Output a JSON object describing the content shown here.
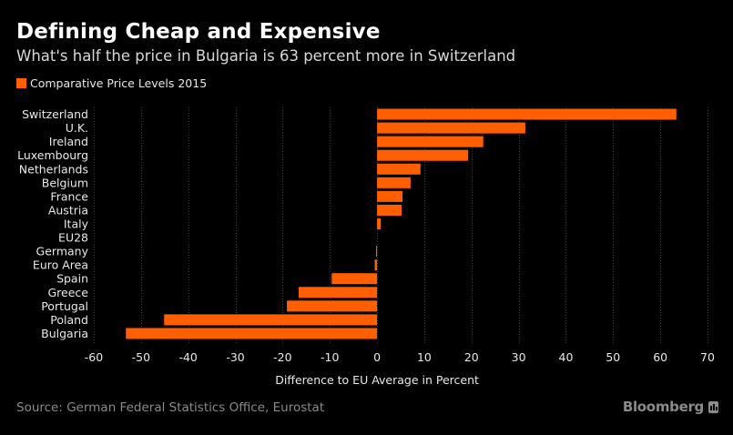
{
  "header": {
    "title": "Defining Cheap and Expensive",
    "subtitle": "What's half the price in Bulgaria is 63 percent more in Switzerland"
  },
  "footer": {
    "source": "Source: German Federal Statistics Office, Eurostat",
    "brand": "Bloomberg"
  },
  "colors": {
    "bar": "#ff5f00",
    "background": "#000000",
    "gridline": "#3a3a3a"
  },
  "chart_data": {
    "type": "bar",
    "orientation": "horizontal",
    "title": "Defining Cheap and Expensive",
    "subtitle": "What's half the price in Bulgaria is 63 percent more in Switzerland",
    "legend": {
      "entries": [
        "Comparative Price Levels 2015"
      ],
      "placement": "top-left"
    },
    "categories": [
      "Switzerland",
      "U.K.",
      "Ireland",
      "Luxembourg",
      "Netherlands",
      "Belgium",
      "France",
      "Austria",
      "Italy",
      "EU28",
      "Germany",
      "Euro Area",
      "Spain",
      "Greece",
      "Portugal",
      "Poland",
      "Bulgaria"
    ],
    "series": [
      {
        "name": "Comparative Price Levels 2015",
        "values": [
          63.4,
          31.4,
          22.5,
          19.3,
          9.2,
          7.1,
          5.4,
          5.2,
          0.8,
          0,
          -0.2,
          -0.5,
          -9.6,
          -16.6,
          -19.1,
          -45.1,
          -53.2
        ]
      }
    ],
    "xlabel": "Difference to EU Average in Percent",
    "ylabel": "",
    "xlim": [
      -60,
      70
    ],
    "xticks": [
      -60,
      -50,
      -40,
      -30,
      -20,
      -10,
      0,
      10,
      20,
      30,
      40,
      50,
      60,
      70
    ],
    "xtick_labels": [
      "-60",
      "-50",
      "-40",
      "-30",
      "-20",
      "-10",
      "0",
      "10",
      "20",
      "30",
      "40",
      "50",
      "60",
      "70"
    ],
    "grid": "vertical-dotted"
  }
}
